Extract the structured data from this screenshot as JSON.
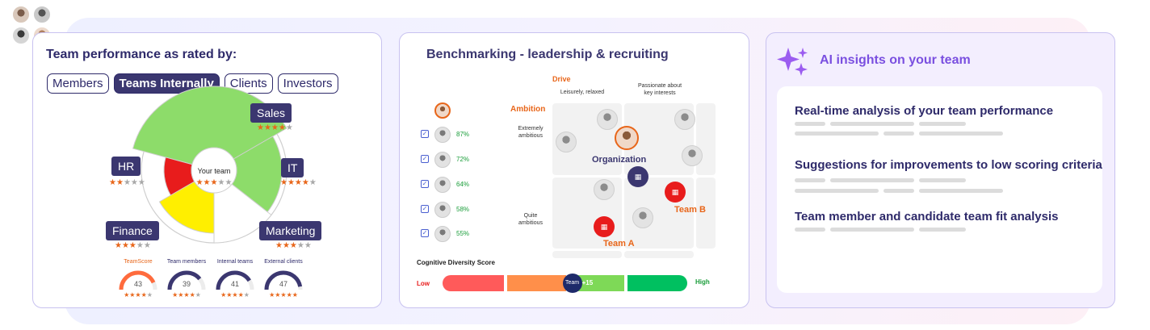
{
  "performance": {
    "title": "Team performance as rated by:",
    "tabs": [
      {
        "label": "Members",
        "active": false
      },
      {
        "label": "Teams Internally",
        "active": true
      },
      {
        "label": "Clients",
        "active": false
      },
      {
        "label": "Investors",
        "active": false
      }
    ],
    "center_label": "Your team",
    "center_stars": 3,
    "segments": [
      {
        "label": "Sales",
        "stars": 4,
        "color": "#8ddc6a"
      },
      {
        "label": "IT",
        "stars": 4,
        "color": "#8ddc6a"
      },
      {
        "label": "Marketing",
        "stars": 3,
        "color": "#ffffff"
      },
      {
        "label": "Finance",
        "stars": 3,
        "color": "#ffef00"
      },
      {
        "label": "HR",
        "stars": 2,
        "color": "#e81c1c"
      }
    ],
    "gauges": [
      {
        "title": "TeamScore",
        "value": "43",
        "stars": 4,
        "highlight": true
      },
      {
        "title": "Team members",
        "value": "39",
        "stars": 4,
        "highlight": false
      },
      {
        "title": "Internal teams",
        "value": "41",
        "stars": 4,
        "highlight": false
      },
      {
        "title": "External clients",
        "value": "47",
        "stars": 5,
        "highlight": false
      }
    ]
  },
  "benchmarking": {
    "title": "Benchmarking - leadership & recruiting",
    "drive_label": "Drive",
    "ambition_label": "Ambition",
    "drive_low": "Leisurely, relaxed",
    "drive_high": "Passionate about key interests",
    "ambition_high": "Extremely ambitious",
    "ambition_low": "Quite ambitious",
    "candidates": [
      {
        "percent": "87%"
      },
      {
        "percent": "72%"
      },
      {
        "percent": "64%"
      },
      {
        "percent": "58%"
      },
      {
        "percent": "55%"
      }
    ],
    "organization_label": "Organization",
    "team_a_label": "Team A",
    "team_b_label": "Team B",
    "cds_title": "Cognitive Diversity Score",
    "cds_low": "Low",
    "cds_high": "High",
    "cds_marker_label": "Team",
    "cds_marker_value": "+15",
    "cds_position": 0.53
  },
  "insights": {
    "title": "AI insights on your team",
    "items": [
      {
        "text": "Real-time analysis of your team performance"
      },
      {
        "text": "Suggestions for improvements to low scoring criteria"
      },
      {
        "text": "Team member and candidate team fit analysis"
      }
    ]
  }
}
